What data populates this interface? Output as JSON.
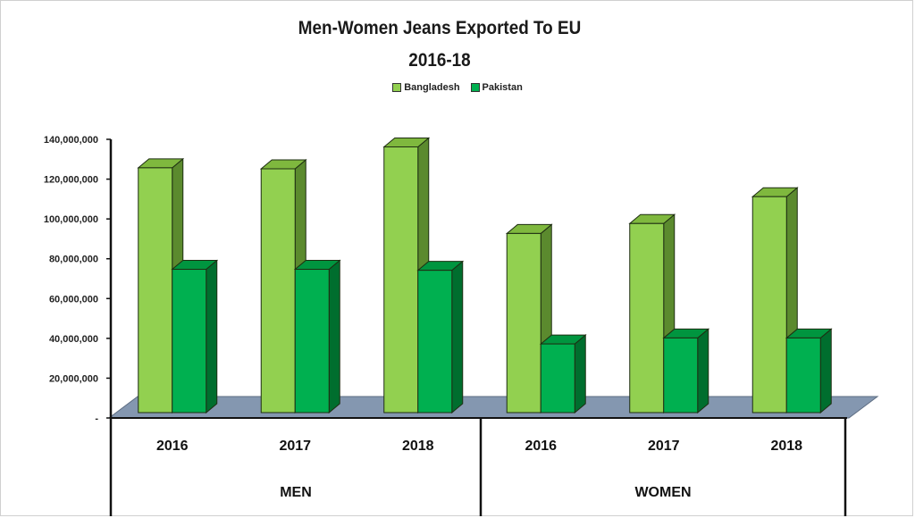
{
  "chart_data": {
    "type": "bar",
    "title": "Men-Women Jeans Exported To EU",
    "subtitle": "2016-18",
    "groups": [
      "MEN",
      "WOMEN"
    ],
    "categories": [
      "2016",
      "2017",
      "2018",
      "2016",
      "2017",
      "2018"
    ],
    "category_groups": [
      "MEN",
      "MEN",
      "MEN",
      "WOMEN",
      "WOMEN",
      "WOMEN"
    ],
    "series": [
      {
        "name": "Bangladesh",
        "values": [
          123000000,
          122500000,
          133500000,
          90000000,
          95000000,
          108500000
        ]
      },
      {
        "name": "Pakistan",
        "values": [
          72000000,
          72000000,
          71500000,
          34500000,
          37500000,
          37500000
        ]
      }
    ],
    "yticks": [
      "-",
      "20,000,000",
      "40,000,000",
      "60,000,000",
      "80,000,000",
      "100,000,000",
      "120,000,000",
      "140,000,000"
    ],
    "ylim": [
      0,
      140000000
    ],
    "legend_position": "top-center",
    "grid": false,
    "colors": {
      "Bangladesh": {
        "front": "#92D050",
        "side": "#5B8A2E",
        "top": "#7FB83E"
      },
      "Pakistan": {
        "front": "#00B050",
        "side": "#006E2E",
        "top": "#00953F"
      },
      "floor": "#8497B0"
    }
  }
}
